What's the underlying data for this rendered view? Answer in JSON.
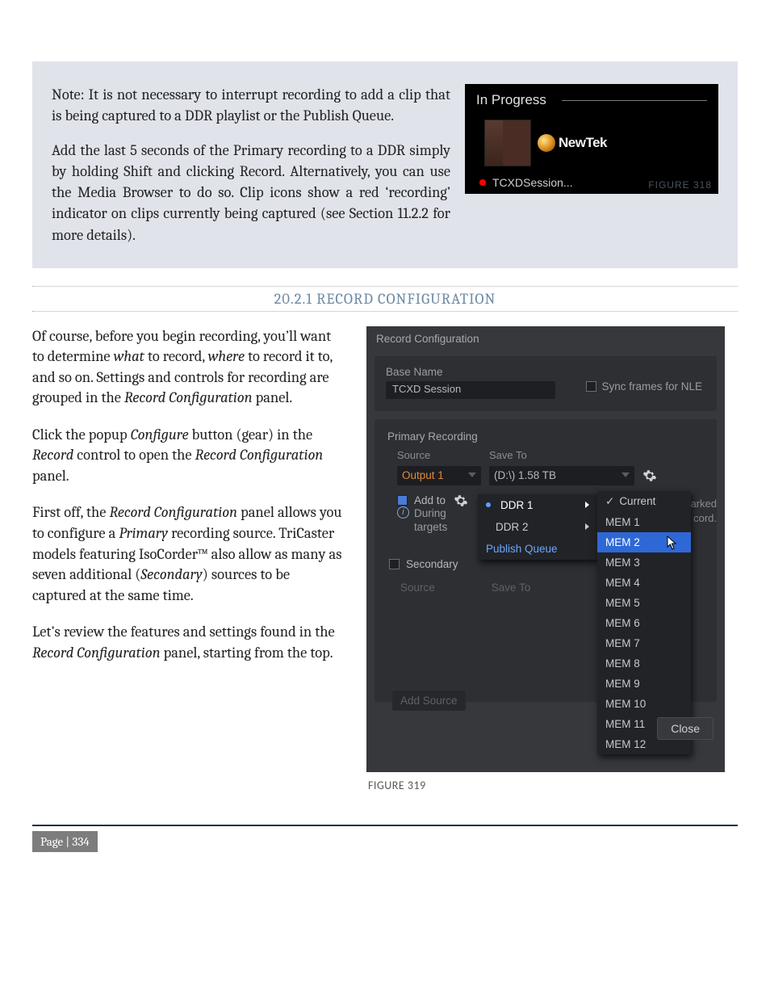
{
  "note": {
    "p1": "Note: It is not necessary to interrupt recording to add a clip that is being captured to a DDR playlist or the Publish Queue.",
    "p2": "Add the last 5 seconds of the Primary recording to a DDR simply by holding Shift and clicking Record. Alternatively, you can use the Media Browser to do so.  Clip icons show a red ‘recording’ indicator on clips currently being captured (see Section 11.2.2 for more details)."
  },
  "inprogress": {
    "title": "In Progress",
    "brand": "NewTek",
    "session": "TCXDSession...",
    "figure": "FIGURE 318"
  },
  "section_heading": "20.2.1 RECORD CONFIGURATION",
  "body": {
    "p1a": "Of course, before you begin recording, you’ll want to determine ",
    "p1b": "what",
    "p1c": " to record, ",
    "p1d": "where",
    "p1e": " to record it to, and so on. Settings and controls for recording are grouped in the ",
    "p1f": "Record Configuration",
    "p1g": " panel.",
    "p2a": "Click the popup ",
    "p2b": "Configure",
    "p2c": " button (gear) in the ",
    "p2d": "Record",
    "p2e": " control to open the ",
    "p2f": "Record Configuration",
    "p2g": " panel.",
    "p3a": "First off, the ",
    "p3b": "Record Configuration",
    "p3c": " panel allows you to configure a ",
    "p3d": "Primary",
    "p3e": " recording source. TriCaster models featuring IsoCorder™ also allow as many as seven additional (",
    "p3f": "Secondary",
    "p3g": ") sources to be captured at the same time.",
    "p4a": "Let’s review the features and settings found in the ",
    "p4b": "Record Configuration",
    "p4c": " panel, starting from the top."
  },
  "reccfg": {
    "title": "Record Configuration",
    "basename_label": "Base Name",
    "basename_value": "TCXD Session",
    "sync_label": "Sync frames for NLE",
    "primary_label": "Primary Recording",
    "source_head": "Source",
    "saveto_head": "Save To",
    "output": "Output 1",
    "drive": "(D:\\) 1.58 TB",
    "addto": "Add to",
    "info_during": "During",
    "info_targets": "targets",
    "secondary": "Secondary",
    "source2": "Source",
    "saveto2": "Save To",
    "addsource": "Add Source",
    "close": "Close",
    "ghost_kmarked": "k-marked",
    "ghost_cord": "cord.",
    "menu_ddr": {
      "ddr1": "DDR 1",
      "ddr2": "DDR 2",
      "pq": "Publish Queue"
    },
    "menu_mem": {
      "current": "Current",
      "items": [
        "MEM 1",
        "MEM 2",
        "MEM 3",
        "MEM 4",
        "MEM 5",
        "MEM 6",
        "MEM 7",
        "MEM 8",
        "MEM 9",
        "MEM 10",
        "MEM 11",
        "MEM 12"
      ],
      "selected_index": 1
    }
  },
  "figure319": "FIGURE 319",
  "page": "Page | 334"
}
